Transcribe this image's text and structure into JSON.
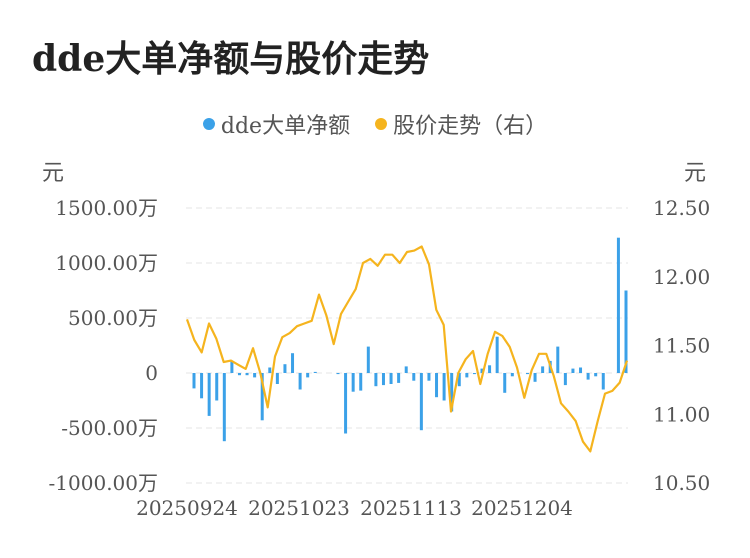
{
  "title": "dde大单净额与股价走势",
  "colors": {
    "bar": "#3ba1e8",
    "line": "#f5b41e",
    "grid": "#e6e6e6"
  },
  "chart_data": {
    "type": "bar+line",
    "title": "dde大单净额与股价走势",
    "left_axis": {
      "unit_label": "元",
      "ticks": [
        "1500.00万",
        "1000.00万",
        "500.00万",
        "0",
        "-500.00万",
        "-1000.00万"
      ],
      "range": [
        -1000,
        1500
      ]
    },
    "right_axis": {
      "unit_label": "元",
      "ticks": [
        "12.50",
        "12.00",
        "11.50",
        "11.00",
        "10.50"
      ],
      "range": [
        10.5,
        12.5
      ]
    },
    "x_tick_labels": [
      "20250924",
      "20251023",
      "20251113",
      "20251204"
    ],
    "legend_position": "top",
    "grid": true,
    "series": [
      {
        "name": "dde大单净额",
        "type": "bar",
        "axis": "left",
        "values": [
          -140,
          -230,
          -390,
          -250,
          -620,
          110,
          -20,
          -20,
          -40,
          -430,
          50,
          -100,
          80,
          180,
          -150,
          -40,
          10,
          0,
          0,
          -10,
          -550,
          -170,
          -160,
          240,
          -120,
          -110,
          -100,
          -90,
          60,
          -70,
          -520,
          -70,
          -220,
          -250,
          -350,
          -120,
          -40,
          -10,
          40,
          70,
          330,
          -180,
          -30,
          0,
          -10,
          -80,
          60,
          110,
          240,
          -110,
          40,
          50,
          -60,
          -30,
          -150,
          0,
          1230,
          750
        ]
      },
      {
        "name": "股价走势（右）",
        "type": "line",
        "axis": "right",
        "values": [
          11.69,
          11.54,
          11.45,
          11.66,
          11.55,
          11.38,
          11.39,
          11.36,
          11.33,
          11.48,
          11.3,
          11.05,
          11.42,
          11.56,
          11.59,
          11.64,
          11.66,
          11.68,
          11.87,
          11.72,
          11.51,
          11.73,
          11.82,
          11.91,
          12.1,
          12.13,
          12.08,
          12.16,
          12.16,
          12.1,
          12.18,
          12.19,
          12.22,
          12.09,
          11.76,
          11.65,
          11.02,
          11.3,
          11.4,
          11.46,
          11.22,
          11.44,
          11.6,
          11.57,
          11.49,
          11.34,
          11.12,
          11.32,
          11.44,
          11.44,
          11.28,
          11.08,
          11.02,
          10.95,
          10.8,
          10.73,
          10.95,
          11.15,
          11.17,
          11.23,
          11.39
        ]
      }
    ]
  }
}
